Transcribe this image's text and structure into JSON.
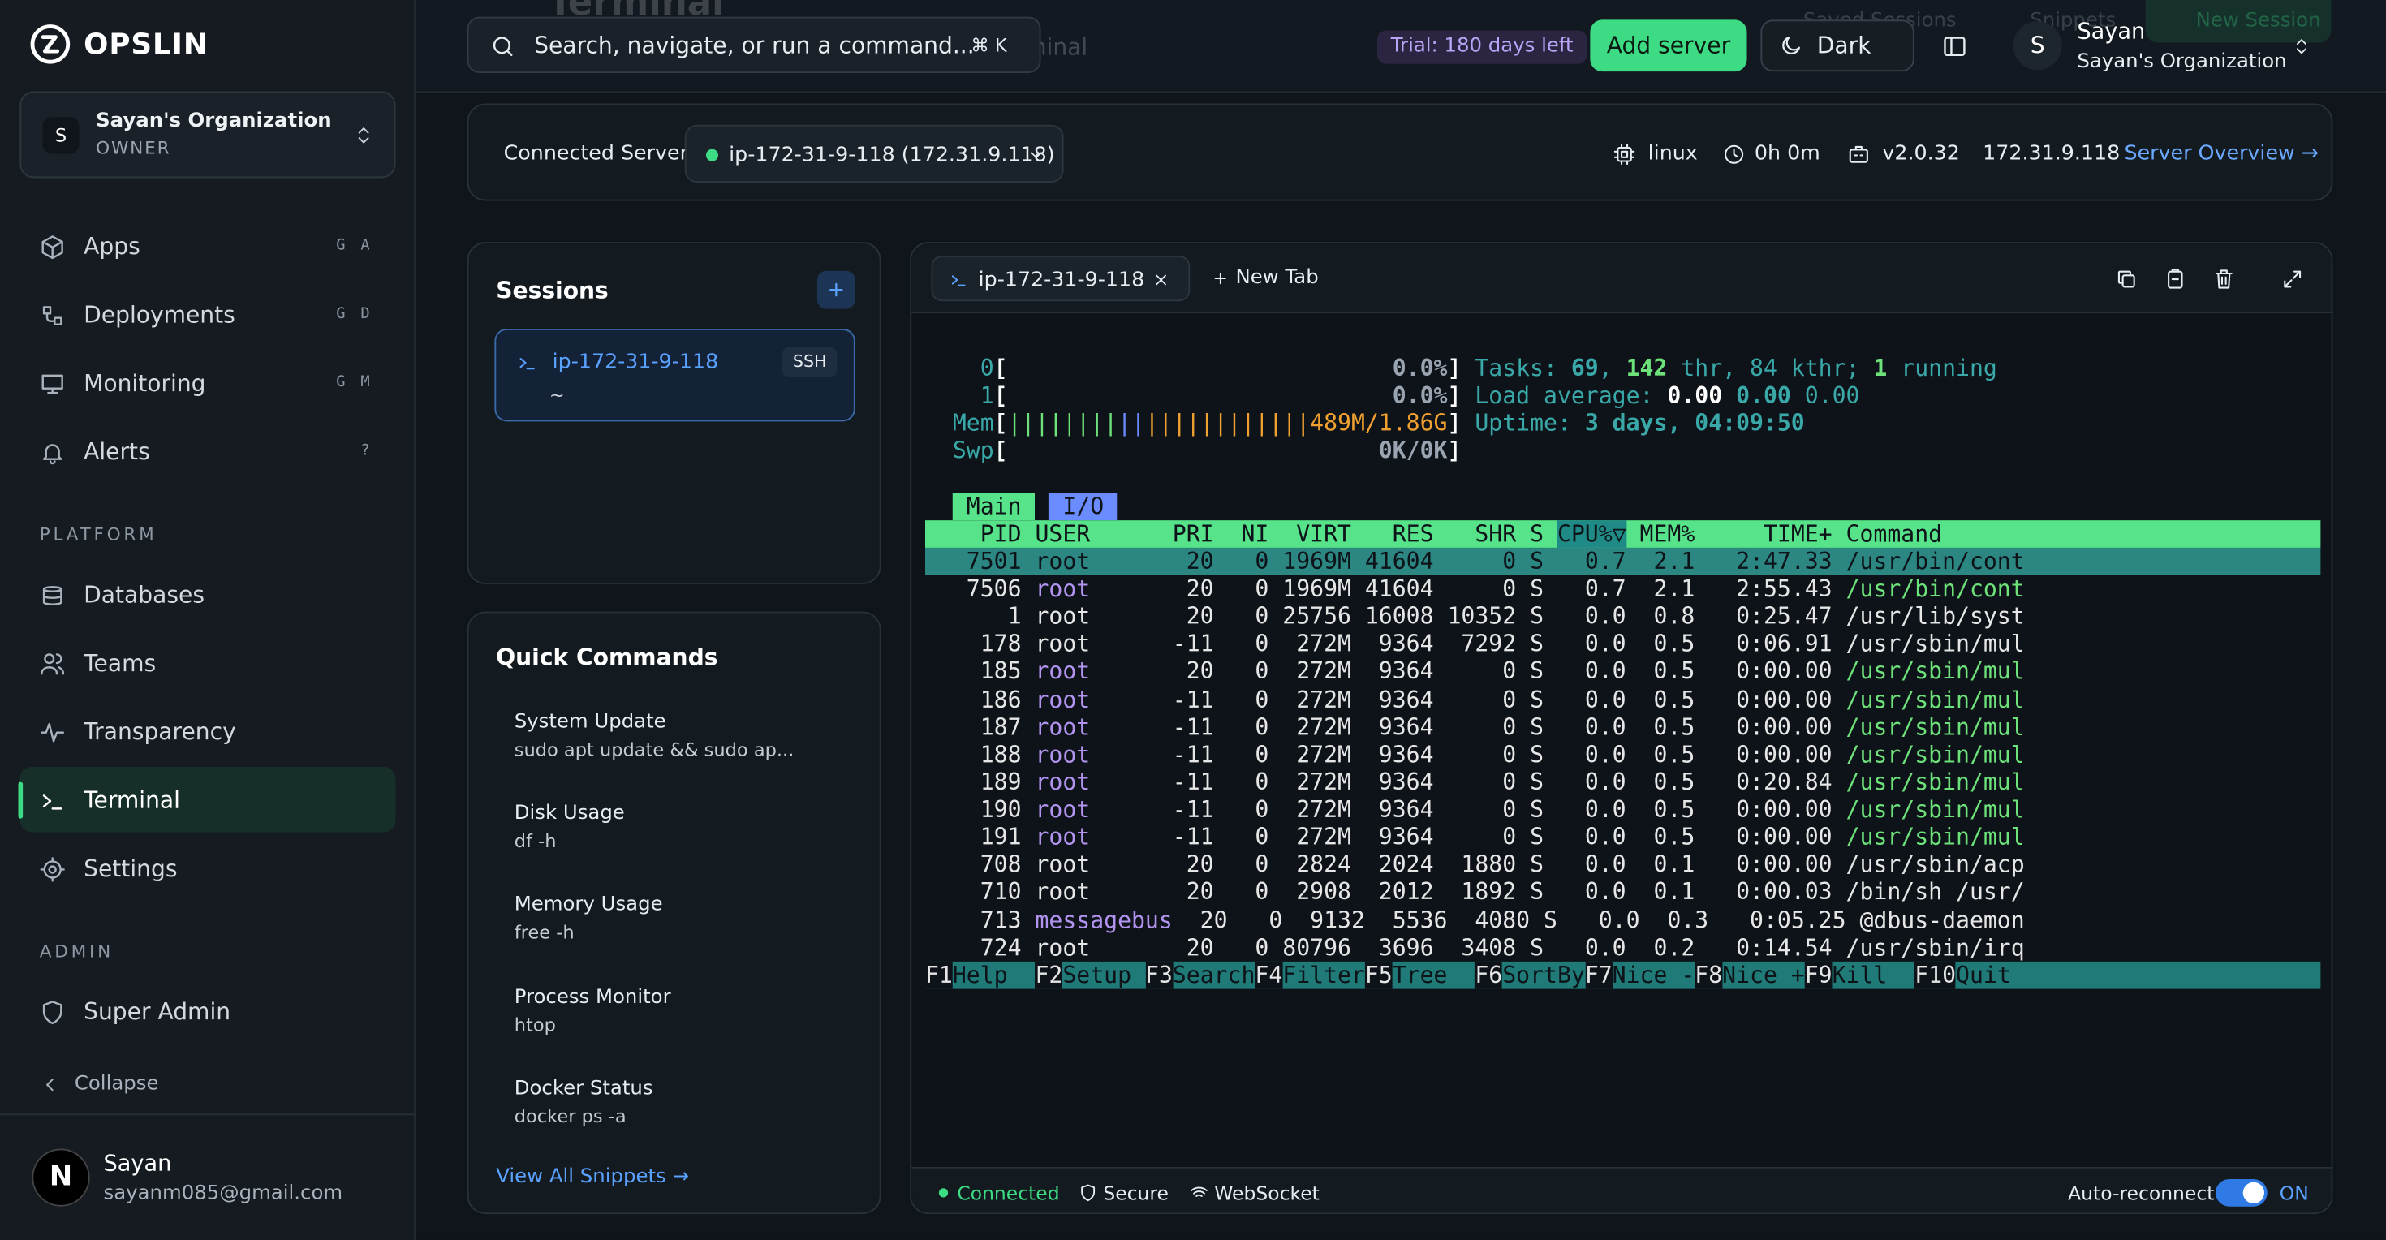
{
  "sidebar": {
    "brand": "OPSLIN",
    "org": {
      "initial": "S",
      "name": "Sayan's Organization",
      "role": "OWNER"
    },
    "nav": [
      {
        "label": "Apps",
        "shortcut": "G A"
      },
      {
        "label": "Deployments",
        "shortcut": "G D"
      },
      {
        "label": "Monitoring",
        "shortcut": "G M"
      },
      {
        "label": "Alerts",
        "shortcut": "?"
      }
    ],
    "platform": {
      "title": "PLATFORM",
      "items": [
        {
          "label": "Databases"
        },
        {
          "label": "Teams"
        },
        {
          "label": "Transparency"
        },
        {
          "label": "Terminal",
          "active": true
        },
        {
          "label": "Settings"
        }
      ]
    },
    "admin": {
      "title": "ADMIN",
      "items": [
        {
          "label": "Super Admin"
        }
      ]
    },
    "collapse": "Collapse",
    "user": {
      "initial": "N",
      "name": "Sayan",
      "email": "sayanm085@gmail.com"
    }
  },
  "page_header": {
    "title": "Terminal",
    "subtitle": "Secure web terminal",
    "actions": [
      "Saved Sessions",
      "Snippets",
      "New Session"
    ]
  },
  "topbar": {
    "search": "Search, navigate, or run a command...",
    "shortcut": "⌘ K",
    "trial": "Trial: 180 days left",
    "add_server": "Add server",
    "theme": "Dark",
    "user": {
      "initial": "S",
      "name": "Sayan",
      "org": "Sayan's Organization"
    }
  },
  "server_bar": {
    "label": "Connected Server",
    "server": "ip-172-31-9-118 (172.31.9.118)",
    "os": "linux",
    "uptime": "0h 0m",
    "version": "v2.0.32",
    "ip": "172.31.9.118",
    "link": "Server Overview →"
  },
  "sessions": {
    "title": "Sessions",
    "items": [
      {
        "name": "ip-172-31-9-118",
        "tag": "SSH",
        "path": "~"
      }
    ]
  },
  "quick_commands": {
    "title": "Quick Commands",
    "items": [
      {
        "name": "System Update",
        "command": "sudo apt update && sudo ap..."
      },
      {
        "name": "Disk Usage",
        "command": "df -h"
      },
      {
        "name": "Memory Usage",
        "command": "free -h"
      },
      {
        "name": "Process Monitor",
        "command": "htop"
      },
      {
        "name": "Docker Status",
        "command": "docker ps -a"
      }
    ],
    "link": "View All Snippets →"
  },
  "terminal": {
    "tab": "ip-172-31-9-118",
    "new_tab": "New Tab",
    "meters": [
      {
        "label": "0",
        "value": "0.0%",
        "info": [
          {
            "text": "Tasks: ",
            "color": "#3aa8a8"
          },
          {
            "text": "69",
            "color": "#3aa8a8",
            "bold": true
          },
          {
            "text": ", ",
            "color": "#3aa8a8"
          },
          {
            "text": "142",
            "color": "#6ee27a",
            "bold": true
          },
          {
            "text": " thr, ",
            "color": "#3aa8a8"
          },
          {
            "text": "84",
            "color": "#3aa8a8"
          },
          {
            "text": " kthr; ",
            "color": "#3aa8a8"
          },
          {
            "text": "1",
            "color": "#6ee27a",
            "bold": true
          },
          {
            "text": " running",
            "color": "#3aa8a8"
          }
        ]
      },
      {
        "label": "1",
        "value": "0.0%",
        "info": [
          {
            "text": "Load average: ",
            "color": "#3aa8a8"
          },
          {
            "text": "0.00 ",
            "color": "#ffffff",
            "bold": true
          },
          {
            "text": "0.00 ",
            "color": "#3aa8a8",
            "bold": true
          },
          {
            "text": "0.00",
            "color": "#3aa8a8"
          }
        ]
      },
      {
        "label": "Mem",
        "value": "489M/1.86G",
        "value_color": "#f0a030",
        "bars": [
          {
            "text": "||||||||",
            "color": "#6ee27a"
          },
          {
            "text": "||",
            "color": "#6b8cff"
          },
          {
            "text": "||||||||||||",
            "color": "#f0a030"
          }
        ],
        "info": [
          {
            "text": "Uptime: ",
            "color": "#3aa8a8"
          },
          {
            "text": "3 days, 04:09:50",
            "color": "#3aa8a8",
            "bold": true
          }
        ]
      },
      {
        "label": "Swp",
        "value": "0K/0K",
        "info": []
      }
    ],
    "tabs": [
      "Main",
      "I/O"
    ],
    "columns": [
      "PID",
      "USER",
      "PRI",
      "NI",
      "VIRT",
      "RES",
      "SHR",
      "S",
      "CPU%▽",
      "MEM%",
      "TIME+",
      "Command"
    ],
    "rows": [
      {
        "cells": [
          "7501",
          "root",
          "20",
          "0",
          "1969M",
          "41604",
          "0",
          "S",
          "0.7",
          "2.1",
          "2:47.33",
          "/usr/bin/cont"
        ],
        "selected": true
      },
      {
        "cells": [
          "7506",
          "root",
          "20",
          "0",
          "1969M",
          "41604",
          "0",
          "S",
          "0.7",
          "2.1",
          "2:55.43",
          "/usr/bin/cont"
        ],
        "user_color": "#b294f0",
        "command_color": "#6ee27a"
      },
      {
        "cells": [
          "1",
          "root",
          "20",
          "0",
          "25756",
          "16008",
          "10352",
          "S",
          "0.0",
          "0.8",
          "0:25.47",
          "/usr/lib/syst"
        ]
      },
      {
        "cells": [
          "178",
          "root",
          "-11",
          "0",
          "272M",
          "9364",
          "7292",
          "S",
          "0.0",
          "0.5",
          "0:06.91",
          "/usr/sbin/mul"
        ]
      },
      {
        "cells": [
          "185",
          "root",
          "20",
          "0",
          "272M",
          "9364",
          "0",
          "S",
          "0.0",
          "0.5",
          "0:00.00",
          "/usr/sbin/mul"
        ],
        "user_color": "#b294f0",
        "command_color": "#6ee27a"
      },
      {
        "cells": [
          "186",
          "root",
          "-11",
          "0",
          "272M",
          "9364",
          "0",
          "S",
          "0.0",
          "0.5",
          "0:00.00",
          "/usr/sbin/mul"
        ],
        "user_color": "#b294f0",
        "command_color": "#6ee27a"
      },
      {
        "cells": [
          "187",
          "root",
          "-11",
          "0",
          "272M",
          "9364",
          "0",
          "S",
          "0.0",
          "0.5",
          "0:00.00",
          "/usr/sbin/mul"
        ],
        "user_color": "#b294f0",
        "command_color": "#6ee27a"
      },
      {
        "cells": [
          "188",
          "root",
          "-11",
          "0",
          "272M",
          "9364",
          "0",
          "S",
          "0.0",
          "0.5",
          "0:00.00",
          "/usr/sbin/mul"
        ],
        "user_color": "#b294f0",
        "command_color": "#6ee27a"
      },
      {
        "cells": [
          "189",
          "root",
          "-11",
          "0",
          "272M",
          "9364",
          "0",
          "S",
          "0.0",
          "0.5",
          "0:20.84",
          "/usr/sbin/mul"
        ],
        "user_color": "#b294f0",
        "command_color": "#6ee27a"
      },
      {
        "cells": [
          "190",
          "root",
          "-11",
          "0",
          "272M",
          "9364",
          "0",
          "S",
          "0.0",
          "0.5",
          "0:00.00",
          "/usr/sbin/mul"
        ],
        "user_color": "#b294f0",
        "command_color": "#6ee27a"
      },
      {
        "cells": [
          "191",
          "root",
          "-11",
          "0",
          "272M",
          "9364",
          "0",
          "S",
          "0.0",
          "0.5",
          "0:00.00",
          "/usr/sbin/mul"
        ],
        "user_color": "#b294f0",
        "command_color": "#6ee27a"
      },
      {
        "cells": [
          "708",
          "root",
          "20",
          "0",
          "2824",
          "2024",
          "1880",
          "S",
          "0.0",
          "0.1",
          "0:00.00",
          "/usr/sbin/acp"
        ]
      },
      {
        "cells": [
          "710",
          "root",
          "20",
          "0",
          "2908",
          "2012",
          "1892",
          "S",
          "0.0",
          "0.1",
          "0:00.03",
          "/bin/sh /usr/"
        ]
      },
      {
        "cells": [
          "713",
          "messagebus",
          "20",
          "0",
          "9132",
          "5536",
          "4080",
          "S",
          "0.0",
          "0.3",
          "0:05.25",
          "@dbus-daemon"
        ],
        "user_color": "#b294f0"
      },
      {
        "cells": [
          "724",
          "root",
          "20",
          "0",
          "80796",
          "3696",
          "3408",
          "S",
          "0.0",
          "0.2",
          "0:14.54",
          "/usr/sbin/irq"
        ]
      }
    ],
    "function_keys": [
      {
        "key": "F1",
        "label": "Help"
      },
      {
        "key": "F2",
        "label": "Setup"
      },
      {
        "key": "F3",
        "label": "Search"
      },
      {
        "key": "F4",
        "label": "Filter"
      },
      {
        "key": "F5",
        "label": "Tree"
      },
      {
        "key": "F6",
        "label": "SortBy"
      },
      {
        "key": "F7",
        "label": "Nice -"
      },
      {
        "key": "F8",
        "label": "Nice +"
      },
      {
        "key": "F9",
        "label": "Kill"
      },
      {
        "key": "F10",
        "label": "Quit"
      }
    ],
    "status": {
      "connected": "Connected",
      "secure": "Secure",
      "transport": "WebSocket",
      "auto_reconnect": "Auto-reconnect",
      "toggle": "ON"
    }
  }
}
